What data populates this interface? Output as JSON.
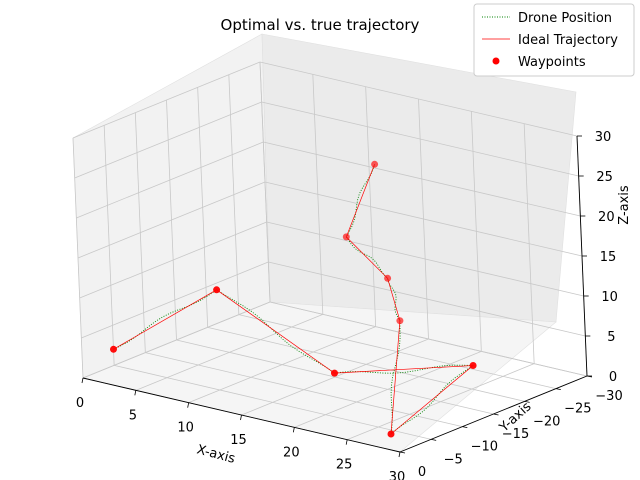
{
  "chart_data": {
    "type": "line3d",
    "title": "Optimal vs. true trajectory",
    "xlabel": "X-axis",
    "ylabel": "Y-axis",
    "zlabel": "Z-axis",
    "xlim": [
      0,
      30
    ],
    "ylim": [
      -30,
      0
    ],
    "zlim": [
      0,
      30
    ],
    "x_ticks": [
      "0",
      "5",
      "10",
      "15",
      "20",
      "25",
      "30"
    ],
    "y_ticks": [
      "0",
      "−5",
      "−10",
      "−15",
      "−20",
      "−25",
      "−30"
    ],
    "z_ticks": [
      "0",
      "5",
      "10",
      "15",
      "20",
      "25",
      "30"
    ],
    "grid": true,
    "legend_position": "top-right",
    "series": [
      {
        "name": "Drone Position",
        "style": "dotted",
        "color": "#008000"
      },
      {
        "name": "Ideal Trajectory",
        "style": "solid",
        "color": "#ff0000"
      },
      {
        "name": "Waypoints",
        "style": "markers",
        "color": "#ff0000"
      }
    ],
    "waypoints": [
      {
        "x": 0,
        "y": -5,
        "z": 2
      },
      {
        "x": 1,
        "y": -20,
        "z": 5
      },
      {
        "x": 18,
        "y": -10,
        "z": 3
      },
      {
        "x": 24,
        "y": -22,
        "z": 2
      },
      {
        "x": 28,
        "y": -2,
        "z": 1
      },
      {
        "x": 19,
        "y": -19,
        "z": 7
      },
      {
        "x": 18,
        "y": -19,
        "z": 12
      },
      {
        "x": 13,
        "y": -21,
        "z": 15
      },
      {
        "x": 16,
        "y": -21,
        "z": 25
      }
    ]
  }
}
